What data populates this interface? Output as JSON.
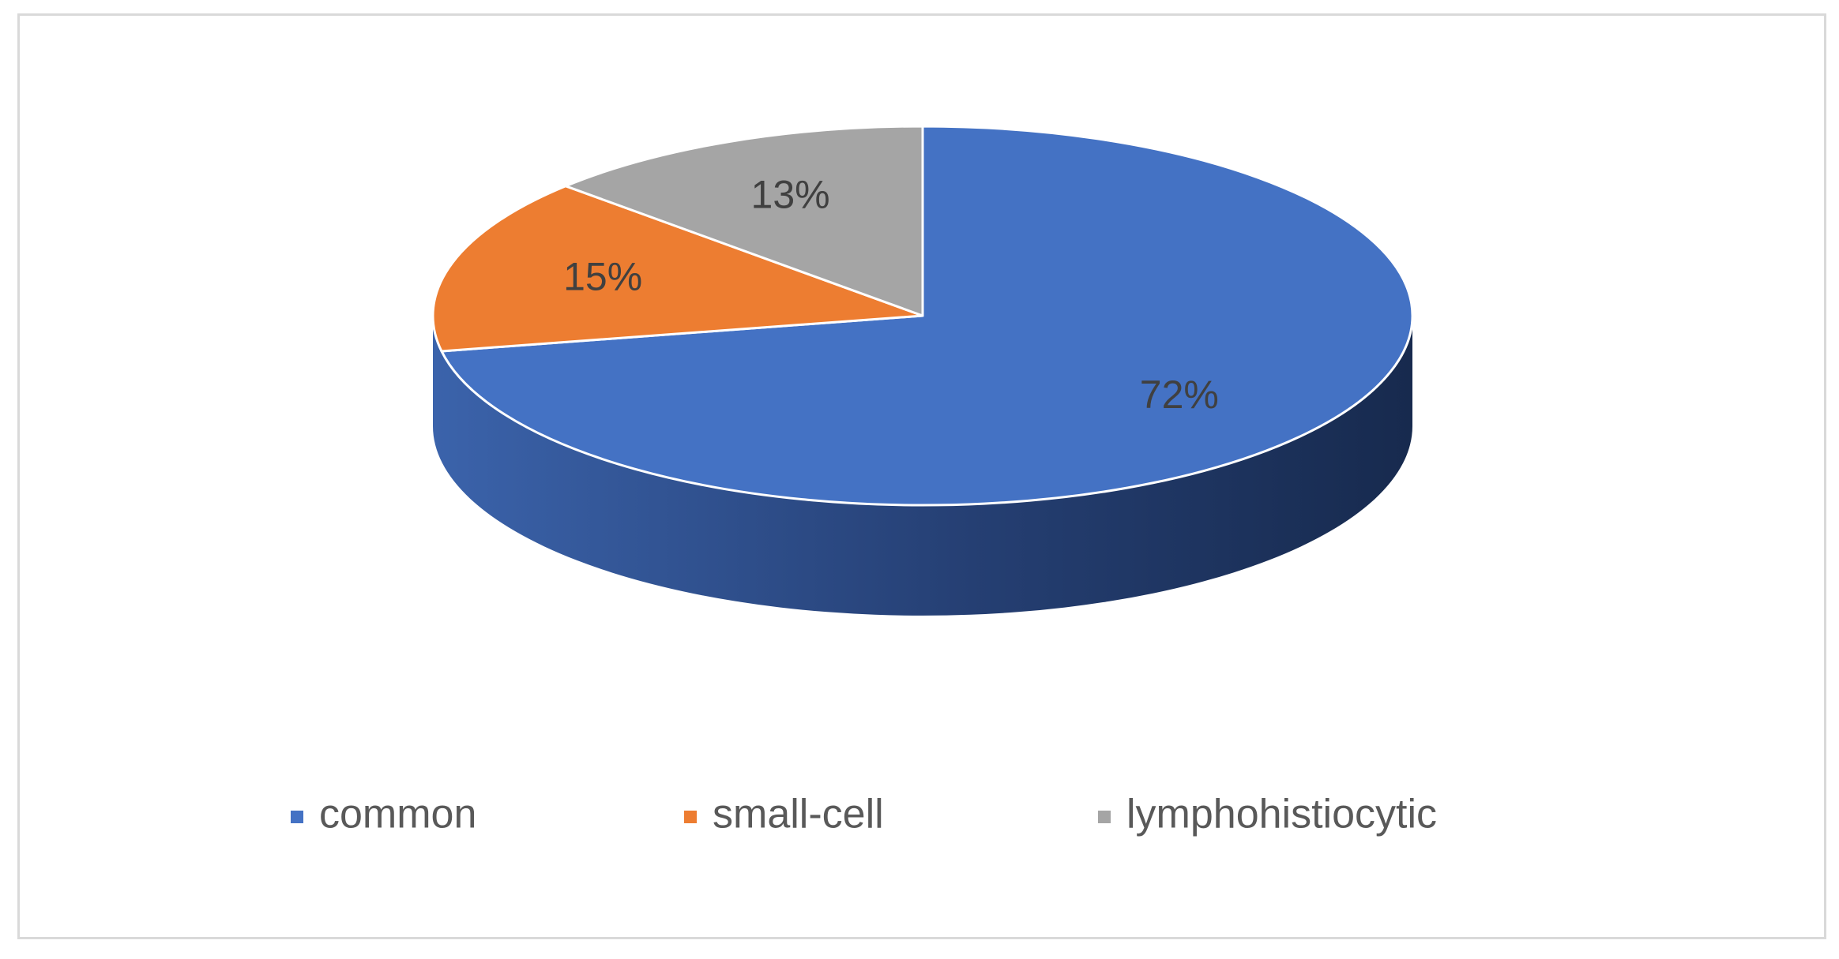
{
  "chart_data": {
    "type": "pie",
    "style": "3d",
    "categories": [
      "common",
      "small-cell",
      "lymphohistiocytic"
    ],
    "values": [
      72,
      15,
      13
    ],
    "labels": [
      "72%",
      "15%",
      "13%"
    ],
    "colors": [
      "#4472C4",
      "#ED7D31",
      "#A5A5A5"
    ],
    "title": "",
    "legend_position": "bottom"
  }
}
